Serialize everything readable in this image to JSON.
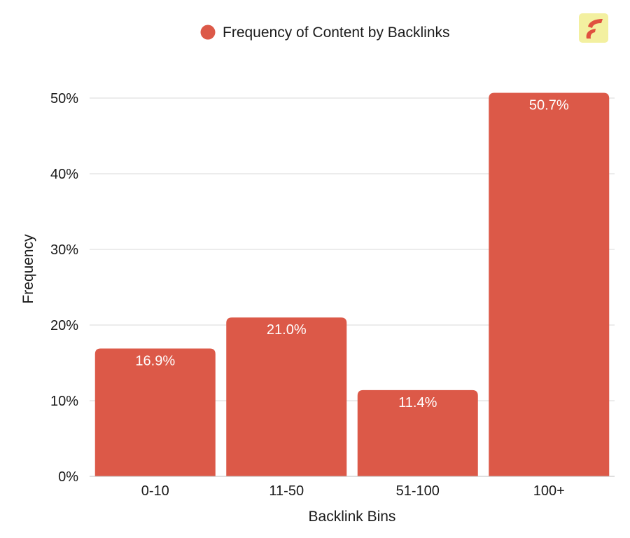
{
  "chart_data": {
    "type": "bar",
    "categories": [
      "0-10",
      "11-50",
      "51-100",
      "100+"
    ],
    "series": [
      {
        "name": "Frequency of Content by Backlinks",
        "values": [
          16.9,
          21.0,
          11.4,
          50.7
        ],
        "color": "#dc5948"
      }
    ],
    "data_labels": [
      "16.9%",
      "21.0%",
      "11.4%",
      "50.7%"
    ],
    "xlabel": "Backlink Bins",
    "ylabel": "Frequency",
    "ylim": [
      0,
      50
    ],
    "yticks": [
      0,
      10,
      20,
      30,
      40,
      50
    ],
    "ytick_labels": [
      "0%",
      "10%",
      "20%",
      "30%",
      "40%",
      "50%"
    ],
    "grid": true,
    "legend": {
      "position": "top-center",
      "entries": [
        "Frequency of Content by Backlinks"
      ]
    }
  },
  "logo": {
    "icon": "brand-logo-icon",
    "background_color": "#f3f0a0",
    "mark_color": "#e0503f"
  }
}
